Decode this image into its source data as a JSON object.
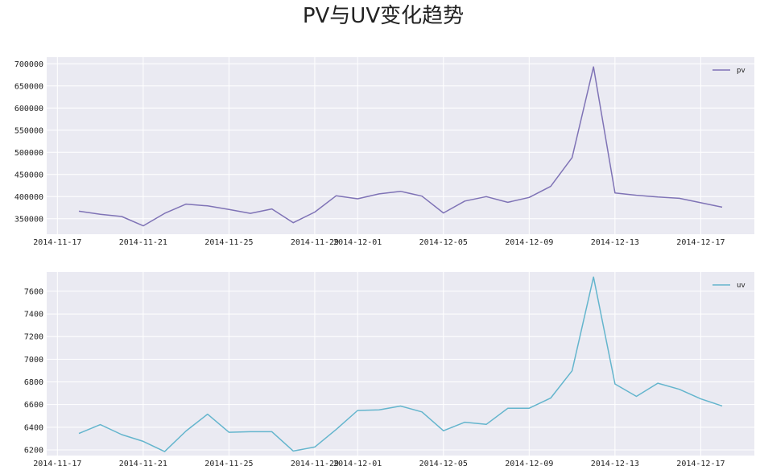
{
  "figure": {
    "title": "PV与UV变化趋势"
  },
  "chart_data": [
    {
      "type": "line",
      "series": [
        {
          "name": "pv",
          "color": "#7f73b6",
          "values": [
            367000,
            360000,
            355000,
            334000,
            362000,
            383000,
            379000,
            371000,
            362000,
            372000,
            341000,
            365000,
            402000,
            395000,
            406000,
            412000,
            401000,
            363000,
            390000,
            400000,
            387000,
            398000,
            423000,
            488000,
            693000,
            408000,
            403000,
            399000,
            396000,
            386000,
            376000
          ]
        }
      ],
      "x": [
        "2014-11-18",
        "2014-11-19",
        "2014-11-20",
        "2014-11-21",
        "2014-11-22",
        "2014-11-23",
        "2014-11-24",
        "2014-11-25",
        "2014-11-26",
        "2014-11-27",
        "2014-11-28",
        "2014-11-29",
        "2014-11-30",
        "2014-12-01",
        "2014-12-02",
        "2014-12-03",
        "2014-12-04",
        "2014-12-05",
        "2014-12-06",
        "2014-12-07",
        "2014-12-08",
        "2014-12-09",
        "2014-12-10",
        "2014-12-11",
        "2014-12-12",
        "2014-12-13",
        "2014-12-14",
        "2014-12-15",
        "2014-12-16",
        "2014-12-17",
        "2014-12-18"
      ],
      "xlim": [
        "2014-11-16.5",
        "2014-12-19.5"
      ],
      "ylim": [
        315000,
        715000
      ],
      "x_ticks": [
        "2014-11-17",
        "2014-11-21",
        "2014-11-25",
        "2014-11-29",
        "2014-12-01",
        "2014-12-05",
        "2014-12-09",
        "2014-12-13",
        "2014-12-17"
      ],
      "y_ticks": [
        350000,
        400000,
        450000,
        500000,
        550000,
        600000,
        650000,
        700000
      ],
      "grid": true,
      "legend": "top-right"
    },
    {
      "type": "line",
      "series": [
        {
          "name": "uv",
          "color": "#64b5cd",
          "values": [
            6345,
            6423,
            6335,
            6275,
            6185,
            6367,
            6515,
            6355,
            6360,
            6360,
            6190,
            6225,
            6380,
            6548,
            6553,
            6587,
            6535,
            6369,
            6444,
            6425,
            6567,
            6568,
            6657,
            6898,
            7726,
            6782,
            6672,
            6789,
            6735,
            6650,
            6588
          ]
        }
      ],
      "x": [
        "2014-11-18",
        "2014-11-19",
        "2014-11-20",
        "2014-11-21",
        "2014-11-22",
        "2014-11-23",
        "2014-11-24",
        "2014-11-25",
        "2014-11-26",
        "2014-11-27",
        "2014-11-28",
        "2014-11-29",
        "2014-11-30",
        "2014-12-01",
        "2014-12-02",
        "2014-12-03",
        "2014-12-04",
        "2014-12-05",
        "2014-12-06",
        "2014-12-07",
        "2014-12-08",
        "2014-12-09",
        "2014-12-10",
        "2014-12-11",
        "2014-12-12",
        "2014-12-13",
        "2014-12-14",
        "2014-12-15",
        "2014-12-16",
        "2014-12-17",
        "2014-12-18"
      ],
      "xlim": [
        "2014-11-16.5",
        "2014-12-19.5"
      ],
      "ylim": [
        6150,
        7770
      ],
      "x_ticks": [
        "2014-11-17",
        "2014-11-21",
        "2014-11-25",
        "2014-11-29",
        "2014-12-01",
        "2014-12-05",
        "2014-12-09",
        "2014-12-13",
        "2014-12-17"
      ],
      "y_ticks": [
        6200,
        6400,
        6600,
        6800,
        7000,
        7200,
        7400,
        7600
      ],
      "grid": true,
      "legend": "top-right"
    }
  ]
}
